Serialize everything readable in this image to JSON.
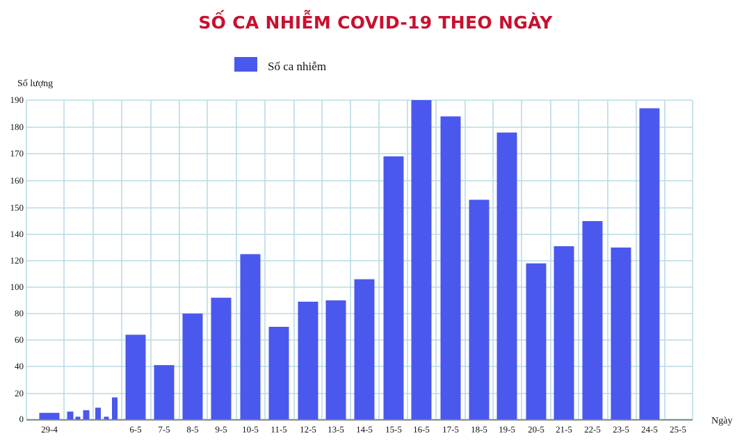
{
  "chart_data": {
    "type": "bar",
    "title": "SỐ CA NHIỄM COVID-19 THEO NGÀY",
    "ylabel": "Số lượng",
    "xlabel": "Ngày",
    "legend": {
      "position": "top-left",
      "label": "Số ca nhiễm"
    },
    "grid": true,
    "y_ticks": [
      0,
      20,
      40,
      60,
      80,
      100,
      120,
      140,
      150,
      160,
      170,
      180,
      190
    ],
    "categories": [
      "29-4",
      "",
      "",
      "",
      "",
      "",
      "",
      "",
      "6-5",
      "7-5",
      "8-5",
      "9-5",
      "10-5",
      "11-5",
      "12-5",
      "13-5",
      "14-5",
      "15-5",
      "16-5",
      "17-5",
      "18-5",
      "19-5",
      "20-5",
      "21-5",
      "22-5",
      "23-5",
      "24-5",
      "25-5"
    ],
    "series": [
      {
        "name": "Số ca nhiễm",
        "values": [
          5,
          6,
          2,
          7,
          9,
          2,
          17,
          null,
          64,
          41,
          80,
          92,
          125,
          70,
          89,
          90,
          106,
          169,
          190,
          184,
          153,
          178,
          118,
          131,
          145,
          130,
          187,
          0
        ]
      }
    ],
    "colors": {
      "bar": "#4a58ee",
      "grid": "#b9dbe6",
      "title": "#c8102e"
    }
  }
}
